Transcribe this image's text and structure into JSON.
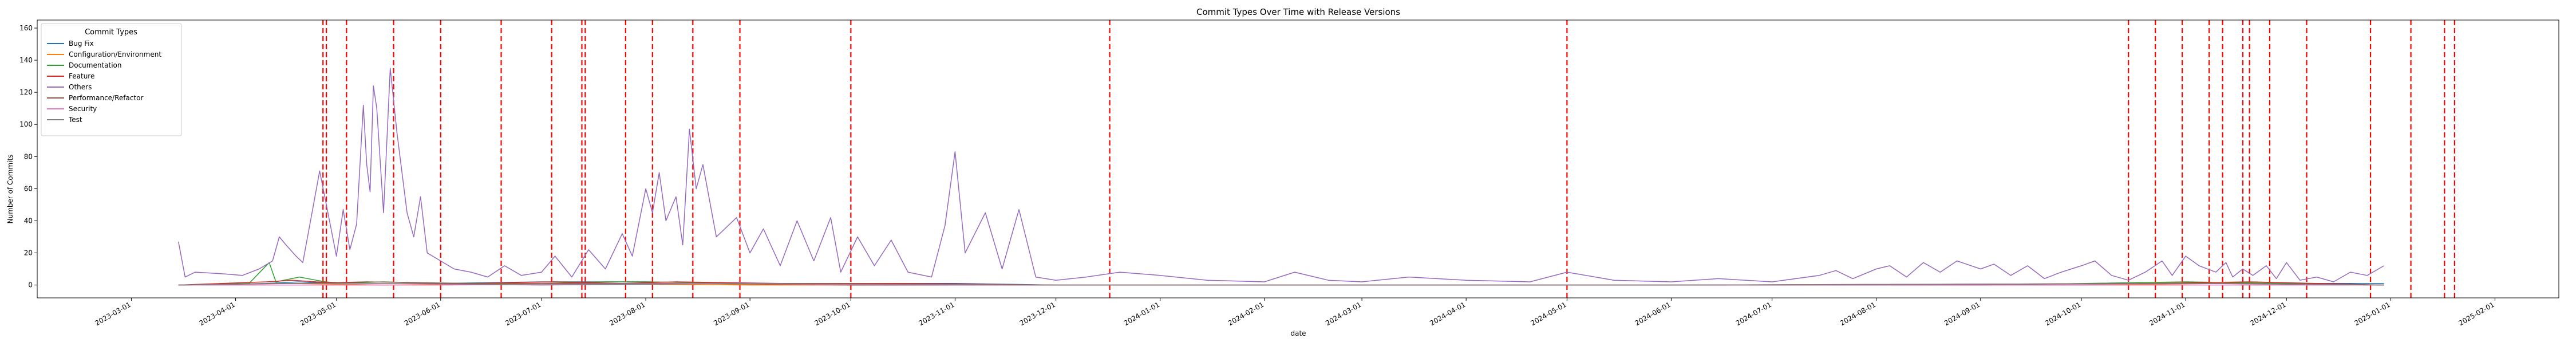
{
  "chart_data": {
    "type": "line",
    "title": "Commit Types Over Time with Release Versions",
    "xlabel": "date",
    "ylabel": "Number of Commits",
    "xlim": [
      "2023-02-01",
      "2025-02-20"
    ],
    "ylim": [
      -8,
      165
    ],
    "y_ticks": [
      0,
      20,
      40,
      60,
      80,
      100,
      120,
      140,
      160
    ],
    "x_ticks": [
      "2023-03-01",
      "2023-04-01",
      "2023-05-01",
      "2023-06-01",
      "2023-07-01",
      "2023-08-01",
      "2023-09-01",
      "2023-10-01",
      "2023-11-01",
      "2023-12-01",
      "2024-01-01",
      "2024-02-01",
      "2024-03-01",
      "2024-04-01",
      "2024-05-01",
      "2024-06-01",
      "2024-07-01",
      "2024-08-01",
      "2024-09-01",
      "2024-10-01",
      "2024-11-01",
      "2024-12-01",
      "2025-01-01",
      "2025-02-01"
    ],
    "grid": false,
    "legend": {
      "title": "Commit Types",
      "placement": "top-left"
    },
    "release_line_color": "#ff0000",
    "series": [
      {
        "name": "Bug Fix",
        "color": "#1f77b4",
        "points": [
          [
            "2023-03-15",
            0
          ],
          [
            "2023-04-10",
            1
          ],
          [
            "2023-04-20",
            2
          ],
          [
            "2023-05-01",
            1
          ],
          [
            "2023-06-01",
            1
          ],
          [
            "2023-07-01",
            2
          ],
          [
            "2023-08-01",
            2
          ],
          [
            "2023-09-01",
            1
          ],
          [
            "2023-10-01",
            1
          ],
          [
            "2023-11-01",
            1
          ],
          [
            "2023-12-01",
            0
          ],
          [
            "2024-02-01",
            0
          ],
          [
            "2024-05-01",
            0
          ],
          [
            "2024-08-01",
            0
          ],
          [
            "2024-11-01",
            1
          ],
          [
            "2024-12-01",
            1
          ],
          [
            "2024-12-30",
            1
          ]
        ]
      },
      {
        "name": "Configuration/Environment",
        "color": "#ff7f0e",
        "points": [
          [
            "2023-03-15",
            0
          ],
          [
            "2023-04-15",
            1
          ],
          [
            "2023-05-15",
            0
          ],
          [
            "2023-07-01",
            1
          ],
          [
            "2023-09-01",
            0
          ],
          [
            "2024-01-01",
            0
          ],
          [
            "2024-05-01",
            0
          ],
          [
            "2024-10-01",
            0
          ],
          [
            "2024-11-15",
            1
          ],
          [
            "2024-12-30",
            0
          ]
        ]
      },
      {
        "name": "Documentation",
        "color": "#2ca02c",
        "points": [
          [
            "2023-03-15",
            0
          ],
          [
            "2023-04-05",
            1
          ],
          [
            "2023-04-11",
            14
          ],
          [
            "2023-04-13",
            2
          ],
          [
            "2023-04-20",
            5
          ],
          [
            "2023-04-25",
            3
          ],
          [
            "2023-05-01",
            1
          ],
          [
            "2023-05-15",
            2
          ],
          [
            "2023-06-01",
            1
          ],
          [
            "2023-07-01",
            1
          ],
          [
            "2023-07-20",
            2
          ],
          [
            "2023-08-01",
            2
          ],
          [
            "2023-09-01",
            1
          ],
          [
            "2023-10-01",
            1
          ],
          [
            "2023-12-01",
            0
          ],
          [
            "2024-03-01",
            0
          ],
          [
            "2024-06-01",
            0
          ],
          [
            "2024-09-01",
            0
          ],
          [
            "2024-11-01",
            2
          ],
          [
            "2024-12-01",
            1
          ],
          [
            "2024-12-30",
            0
          ]
        ]
      },
      {
        "name": "Feature",
        "color": "#d62728",
        "points": [
          [
            "2023-03-15",
            0
          ],
          [
            "2023-04-10",
            2
          ],
          [
            "2023-04-18",
            3
          ],
          [
            "2023-04-25",
            2
          ],
          [
            "2023-05-10",
            1
          ],
          [
            "2023-06-10",
            1
          ],
          [
            "2023-07-05",
            2
          ],
          [
            "2023-07-25",
            1
          ],
          [
            "2023-08-10",
            2
          ],
          [
            "2023-09-10",
            1
          ],
          [
            "2023-10-15",
            1
          ],
          [
            "2023-12-01",
            0
          ],
          [
            "2024-03-01",
            0
          ],
          [
            "2024-07-01",
            0
          ],
          [
            "2024-10-20",
            1
          ],
          [
            "2024-11-20",
            2
          ],
          [
            "2024-12-30",
            0
          ]
        ]
      },
      {
        "name": "Others",
        "color": "#9467bd",
        "points": [
          [
            "2023-03-15",
            27
          ],
          [
            "2023-03-17",
            5
          ],
          [
            "2023-03-20",
            8
          ],
          [
            "2023-03-28",
            7
          ],
          [
            "2023-04-03",
            6
          ],
          [
            "2023-04-08",
            10
          ],
          [
            "2023-04-12",
            15
          ],
          [
            "2023-04-14",
            30
          ],
          [
            "2023-04-16",
            25
          ],
          [
            "2023-04-19",
            18
          ],
          [
            "2023-04-21",
            14
          ],
          [
            "2023-04-24",
            48
          ],
          [
            "2023-04-26",
            71
          ],
          [
            "2023-04-28",
            50
          ],
          [
            "2023-05-01",
            18
          ],
          [
            "2023-05-03",
            47
          ],
          [
            "2023-05-05",
            22
          ],
          [
            "2023-05-07",
            38
          ],
          [
            "2023-05-09",
            112
          ],
          [
            "2023-05-10",
            75
          ],
          [
            "2023-05-11",
            58
          ],
          [
            "2023-05-12",
            124
          ],
          [
            "2023-05-13",
            110
          ],
          [
            "2023-05-15",
            45
          ],
          [
            "2023-05-17",
            135
          ],
          [
            "2023-05-19",
            95
          ],
          [
            "2023-05-22",
            45
          ],
          [
            "2023-05-24",
            30
          ],
          [
            "2023-05-26",
            55
          ],
          [
            "2023-05-28",
            20
          ],
          [
            "2023-06-01",
            15
          ],
          [
            "2023-06-05",
            10
          ],
          [
            "2023-06-10",
            8
          ],
          [
            "2023-06-15",
            5
          ],
          [
            "2023-06-20",
            12
          ],
          [
            "2023-06-25",
            6
          ],
          [
            "2023-07-01",
            8
          ],
          [
            "2023-07-05",
            18
          ],
          [
            "2023-07-10",
            5
          ],
          [
            "2023-07-15",
            22
          ],
          [
            "2023-07-20",
            10
          ],
          [
            "2023-07-25",
            32
          ],
          [
            "2023-07-28",
            18
          ],
          [
            "2023-08-01",
            60
          ],
          [
            "2023-08-03",
            45
          ],
          [
            "2023-08-05",
            70
          ],
          [
            "2023-08-07",
            40
          ],
          [
            "2023-08-10",
            55
          ],
          [
            "2023-08-12",
            25
          ],
          [
            "2023-08-14",
            97
          ],
          [
            "2023-08-16",
            60
          ],
          [
            "2023-08-18",
            75
          ],
          [
            "2023-08-22",
            30
          ],
          [
            "2023-08-28",
            42
          ],
          [
            "2023-09-01",
            20
          ],
          [
            "2023-09-05",
            35
          ],
          [
            "2023-09-10",
            12
          ],
          [
            "2023-09-15",
            40
          ],
          [
            "2023-09-20",
            15
          ],
          [
            "2023-09-25",
            42
          ],
          [
            "2023-09-28",
            8
          ],
          [
            "2023-10-03",
            30
          ],
          [
            "2023-10-08",
            12
          ],
          [
            "2023-10-13",
            28
          ],
          [
            "2023-10-18",
            8
          ],
          [
            "2023-10-25",
            5
          ],
          [
            "2023-10-29",
            37
          ],
          [
            "2023-11-01",
            83
          ],
          [
            "2023-11-04",
            20
          ],
          [
            "2023-11-10",
            45
          ],
          [
            "2023-11-15",
            10
          ],
          [
            "2023-11-20",
            47
          ],
          [
            "2023-11-25",
            5
          ],
          [
            "2023-12-01",
            3
          ],
          [
            "2023-12-10",
            5
          ],
          [
            "2023-12-20",
            8
          ],
          [
            "2024-01-01",
            6
          ],
          [
            "2024-01-15",
            3
          ],
          [
            "2024-02-01",
            2
          ],
          [
            "2024-02-10",
            8
          ],
          [
            "2024-02-20",
            3
          ],
          [
            "2024-03-01",
            2
          ],
          [
            "2024-03-15",
            5
          ],
          [
            "2024-04-01",
            3
          ],
          [
            "2024-04-20",
            2
          ],
          [
            "2024-05-01",
            8
          ],
          [
            "2024-05-15",
            3
          ],
          [
            "2024-06-01",
            2
          ],
          [
            "2024-06-15",
            4
          ],
          [
            "2024-07-01",
            2
          ],
          [
            "2024-07-15",
            6
          ],
          [
            "2024-07-20",
            9
          ],
          [
            "2024-07-25",
            4
          ],
          [
            "2024-08-01",
            10
          ],
          [
            "2024-08-05",
            12
          ],
          [
            "2024-08-10",
            5
          ],
          [
            "2024-08-15",
            14
          ],
          [
            "2024-08-20",
            8
          ],
          [
            "2024-08-25",
            15
          ],
          [
            "2024-09-01",
            10
          ],
          [
            "2024-09-05",
            13
          ],
          [
            "2024-09-10",
            6
          ],
          [
            "2024-09-15",
            12
          ],
          [
            "2024-09-20",
            4
          ],
          [
            "2024-09-25",
            8
          ],
          [
            "2024-10-01",
            12
          ],
          [
            "2024-10-05",
            15
          ],
          [
            "2024-10-10",
            6
          ],
          [
            "2024-10-15",
            3
          ],
          [
            "2024-10-20",
            8
          ],
          [
            "2024-10-25",
            15
          ],
          [
            "2024-10-28",
            6
          ],
          [
            "2024-11-01",
            18
          ],
          [
            "2024-11-05",
            12
          ],
          [
            "2024-11-10",
            8
          ],
          [
            "2024-11-13",
            14
          ],
          [
            "2024-11-15",
            5
          ],
          [
            "2024-11-18",
            10
          ],
          [
            "2024-11-21",
            6
          ],
          [
            "2024-11-25",
            12
          ],
          [
            "2024-11-28",
            4
          ],
          [
            "2024-12-01",
            14
          ],
          [
            "2024-12-05",
            3
          ],
          [
            "2024-12-10",
            5
          ],
          [
            "2024-12-15",
            2
          ],
          [
            "2024-12-20",
            8
          ],
          [
            "2024-12-25",
            6
          ],
          [
            "2024-12-30",
            12
          ]
        ]
      },
      {
        "name": "Performance/Refactor",
        "color": "#8c564b",
        "points": [
          [
            "2023-03-15",
            0
          ],
          [
            "2023-04-20",
            1
          ],
          [
            "2023-05-10",
            2
          ],
          [
            "2023-06-10",
            1
          ],
          [
            "2023-07-10",
            1
          ],
          [
            "2023-08-10",
            1
          ],
          [
            "2023-10-01",
            0
          ],
          [
            "2024-01-01",
            0
          ],
          [
            "2024-06-01",
            0
          ],
          [
            "2024-11-01",
            1
          ],
          [
            "2024-12-30",
            0
          ]
        ]
      },
      {
        "name": "Security",
        "color": "#e377c2",
        "points": [
          [
            "2023-03-15",
            0
          ],
          [
            "2023-06-01",
            0
          ],
          [
            "2023-08-20",
            1
          ],
          [
            "2023-11-01",
            0
          ],
          [
            "2024-05-01",
            0
          ],
          [
            "2024-12-30",
            0
          ]
        ]
      },
      {
        "name": "Test",
        "color": "#7f7f7f",
        "points": [
          [
            "2023-03-15",
            0
          ],
          [
            "2023-04-15",
            1
          ],
          [
            "2023-05-20",
            1
          ],
          [
            "2023-07-01",
            0
          ],
          [
            "2023-09-01",
            1
          ],
          [
            "2023-12-01",
            0
          ],
          [
            "2024-06-01",
            0
          ],
          [
            "2024-11-10",
            1
          ],
          [
            "2024-12-30",
            0
          ]
        ]
      }
    ],
    "release_dates": [
      "2023-04-27",
      "2023-04-28",
      "2023-05-04",
      "2023-05-18",
      "2023-06-01",
      "2023-06-19",
      "2023-07-04",
      "2023-07-13",
      "2023-07-14",
      "2023-07-26",
      "2023-08-03",
      "2023-08-15",
      "2023-08-29",
      "2023-10-01",
      "2023-12-17",
      "2024-05-01",
      "2024-10-15",
      "2024-10-23",
      "2024-10-31",
      "2024-11-08",
      "2024-11-12",
      "2024-11-18",
      "2024-11-20",
      "2024-11-26",
      "2024-12-07",
      "2024-12-26",
      "2025-01-07",
      "2025-01-17",
      "2025-01-20"
    ]
  }
}
